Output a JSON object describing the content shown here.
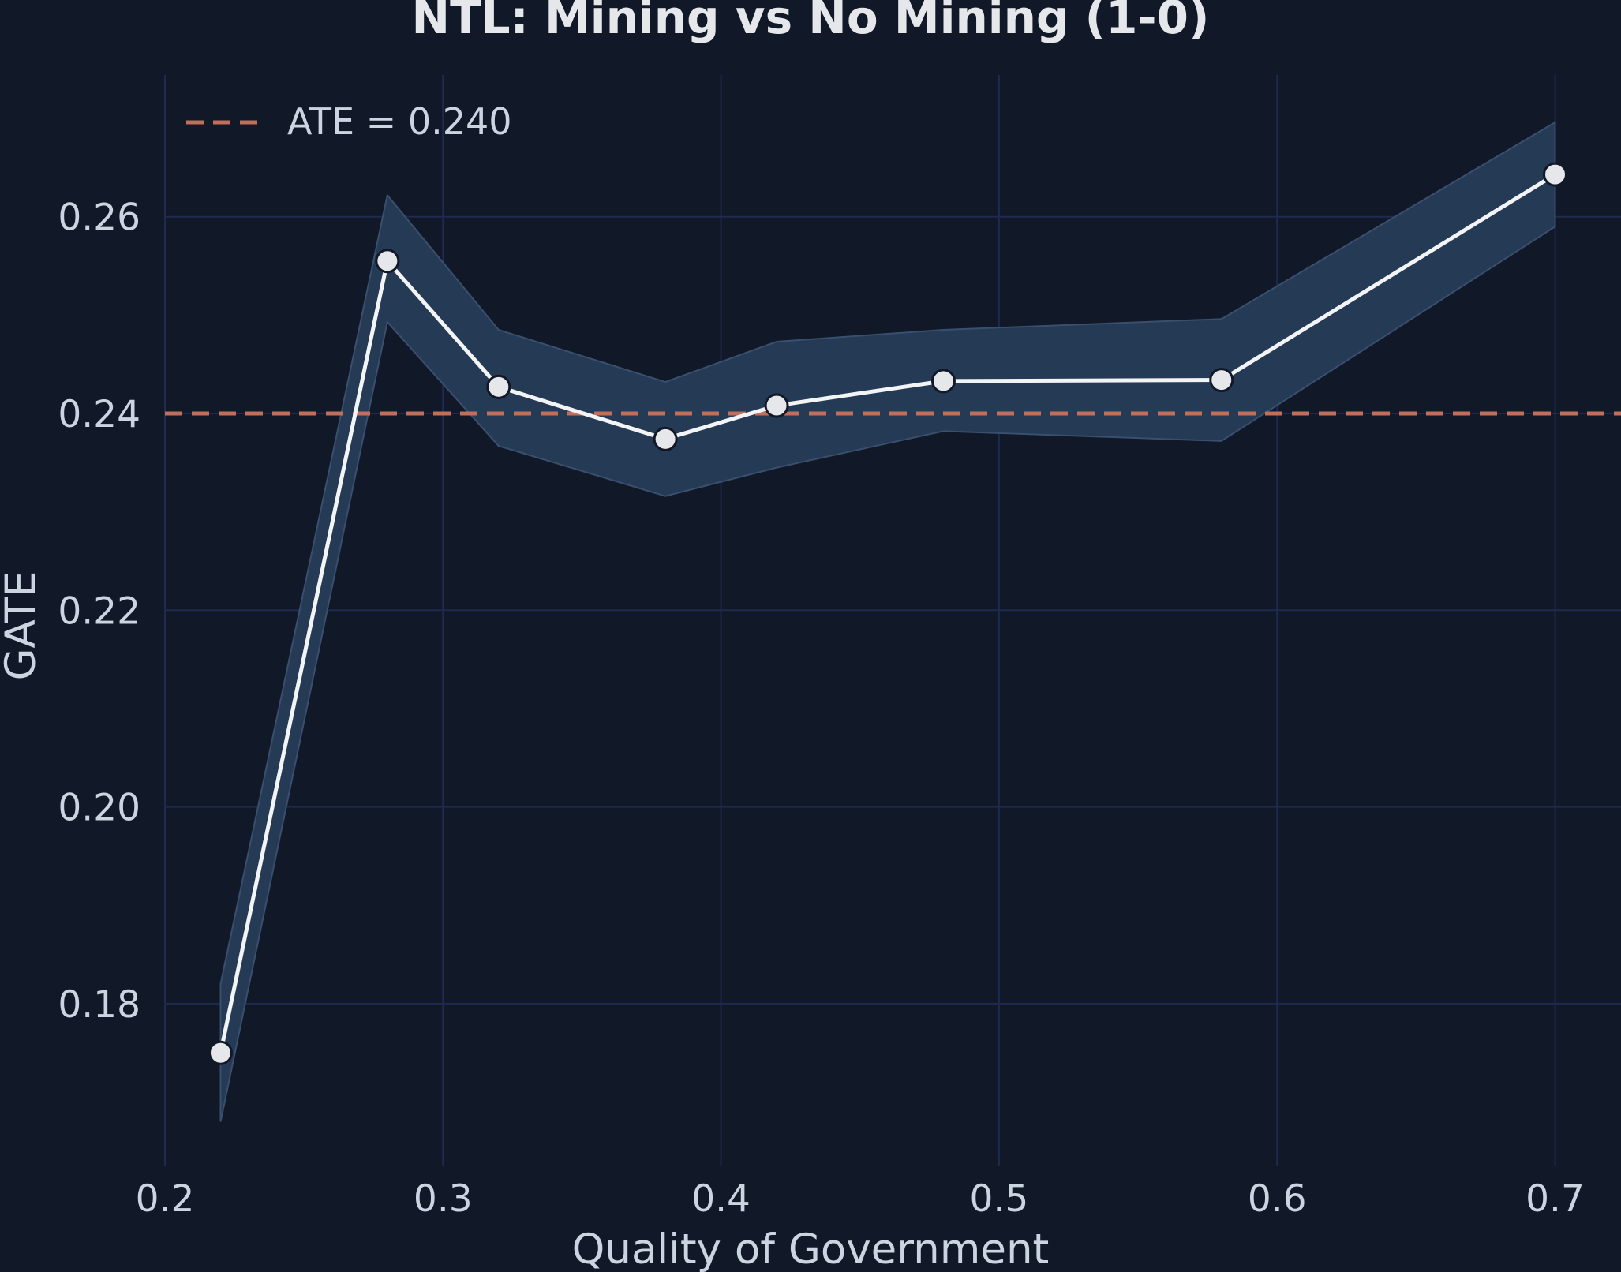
{
  "chart_data": {
    "type": "line",
    "title": "NTL: Mining vs No Mining (1-0)",
    "xlabel": "Quality of Government",
    "ylabel": "GATE",
    "xlim": [
      0.2,
      0.72
    ],
    "ylim": [
      0.164,
      0.2765
    ],
    "x_ticks": [
      {
        "value": 0.2,
        "label": "0.2"
      },
      {
        "value": 0.3,
        "label": "0.3"
      },
      {
        "value": 0.4,
        "label": "0.4"
      },
      {
        "value": 0.5,
        "label": "0.5"
      },
      {
        "value": 0.6,
        "label": "0.6"
      },
      {
        "value": 0.7,
        "label": "0.7"
      }
    ],
    "y_ticks": [
      {
        "value": 0.18,
        "label": "0.18"
      },
      {
        "value": 0.2,
        "label": "0.20"
      },
      {
        "value": 0.22,
        "label": "0.22"
      },
      {
        "value": 0.24,
        "label": "0.24"
      },
      {
        "value": 0.26,
        "label": "0.26"
      }
    ],
    "grid": true,
    "series": [
      {
        "x": [
          0.22,
          0.28,
          0.32,
          0.38,
          0.42,
          0.48,
          0.58,
          0.7
        ],
        "y": [
          0.175,
          0.2555,
          0.2427,
          0.2374,
          0.2408,
          0.2433,
          0.2434,
          0.2643
        ],
        "ci_lower": [
          0.168,
          0.2493,
          0.2367,
          0.2316,
          0.2345,
          0.2382,
          0.2372,
          0.259
        ],
        "ci_upper": [
          0.182,
          0.2622,
          0.2485,
          0.2432,
          0.2473,
          0.2485,
          0.2496,
          0.2696
        ],
        "color": "#f3f4f6",
        "band_color": "#253a55"
      }
    ],
    "reference_line": {
      "name": "ATE = 0.240",
      "value": 0.24,
      "color": "#c0705a",
      "style": "dashed"
    },
    "legend": {
      "position": "top-left",
      "entries": [
        "ATE = 0.240"
      ]
    },
    "colors": {
      "background": "#111827",
      "grid": "#1e2a4f",
      "text": "#cbd5e1",
      "title": "#e5e7eb"
    }
  }
}
